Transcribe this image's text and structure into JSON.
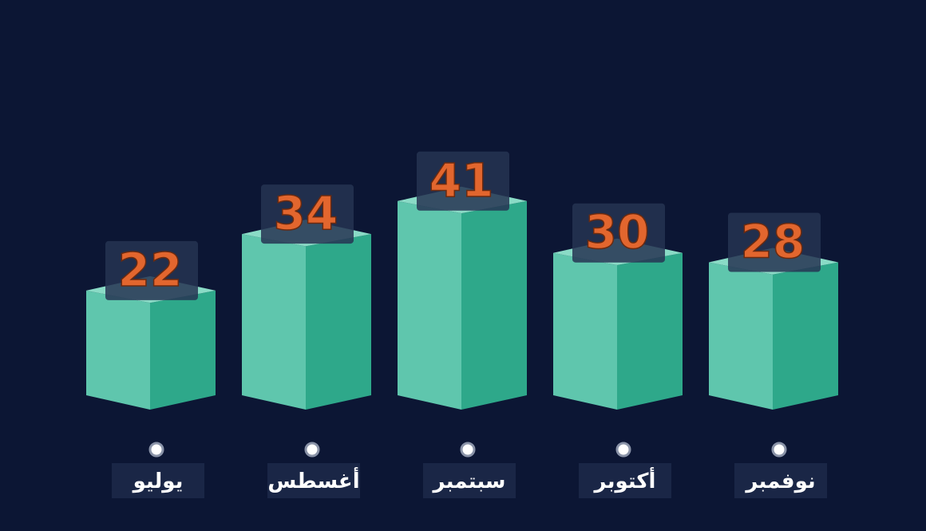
{
  "chart_data": {
    "type": "bar",
    "categories": [
      "يوليو",
      "أغسطس",
      "سبتمبر",
      "أكتوبر",
      "نوفمبر"
    ],
    "values": [
      22,
      34,
      41,
      30,
      28
    ],
    "ylim": [
      0,
      41
    ],
    "grid": false,
    "legend": "none"
  },
  "colors": {
    "background": "#0c1634",
    "bar_front": "#5fc6ad",
    "bar_side": "#2ea88a",
    "bar_top": "#8adbc6",
    "value_text": "#e2662e",
    "value_box": "#263452",
    "label_box": "#1a2646",
    "label_text": "#ffffff",
    "marker": "#ffffff"
  }
}
